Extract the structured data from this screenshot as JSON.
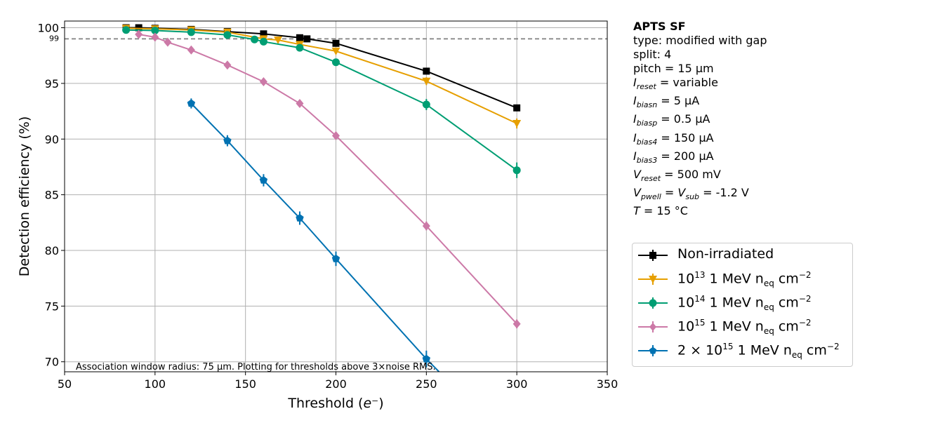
{
  "chart_data": {
    "type": "line",
    "xlabel": "Threshold (e⁻)",
    "ylabel": "Detection efficiency (%)",
    "xlim": [
      50,
      350
    ],
    "ylim": [
      69.1,
      100.6
    ],
    "xticks": [
      50,
      100,
      150,
      200,
      250,
      300,
      350
    ],
    "yticks": [
      70,
      75,
      80,
      85,
      90,
      95,
      100
    ],
    "reference_line": {
      "value": 99,
      "label": "99"
    },
    "annotation": "Association window radius: 75 µm. Plotting for thresholds above 3×noise RMS.",
    "grid": true,
    "series": [
      {
        "name": "Non-irradiated",
        "color": "#000000",
        "marker": "square",
        "x": [
          84,
          91,
          100,
          120,
          140,
          160,
          180,
          184,
          200,
          250,
          300
        ],
        "y": [
          100.0,
          100.0,
          99.95,
          99.85,
          99.65,
          99.45,
          99.1,
          99.0,
          98.6,
          96.1,
          92.8
        ],
        "err": [
          0.1,
          0.1,
          0.1,
          0.1,
          0.1,
          0.15,
          0.15,
          0.15,
          0.2,
          0.25,
          0.3
        ]
      },
      {
        "name": "10^13 1 MeV n_eq cm^-2",
        "color": "#E69F00",
        "marker": "triangle-down",
        "x": [
          84,
          100,
          120,
          140,
          160,
          168,
          180,
          200,
          250,
          300
        ],
        "y": [
          99.95,
          99.9,
          99.8,
          99.6,
          99.0,
          98.9,
          98.5,
          97.9,
          95.2,
          91.4
        ],
        "err": [
          0.1,
          0.1,
          0.1,
          0.15,
          0.2,
          0.2,
          0.2,
          0.25,
          0.35,
          0.45
        ]
      },
      {
        "name": "10^14 1 MeV n_eq cm^-2",
        "color": "#009E73",
        "marker": "circle",
        "x": [
          84,
          100,
          120,
          140,
          155,
          160,
          180,
          200,
          250,
          300
        ],
        "y": [
          99.8,
          99.75,
          99.6,
          99.35,
          98.95,
          98.75,
          98.2,
          96.9,
          93.1,
          87.2
        ],
        "err": [
          0.1,
          0.1,
          0.15,
          0.2,
          0.2,
          0.2,
          0.25,
          0.3,
          0.5,
          0.7
        ]
      },
      {
        "name": "10^15 1 MeV n_eq cm^-2",
        "color": "#CC79A7",
        "marker": "diamond",
        "x": [
          91,
          100,
          107,
          120,
          140,
          160,
          180,
          200,
          250,
          300
        ],
        "y": [
          99.4,
          99.15,
          98.7,
          98.0,
          96.65,
          95.15,
          93.2,
          90.3,
          82.2,
          73.4
        ],
        "err": [
          0.15,
          0.15,
          0.2,
          0.25,
          0.25,
          0.3,
          0.3,
          0.35,
          0.4,
          0.4
        ]
      },
      {
        "name": "2×10^15 1 MeV n_eq cm^-2",
        "color": "#0072B2",
        "marker": "pentagon",
        "x": [
          120,
          140,
          160,
          180,
          200,
          250,
          257
        ],
        "y": [
          93.2,
          89.85,
          86.3,
          82.9,
          79.25,
          70.25,
          69.1
        ],
        "err": [
          0.45,
          0.5,
          0.55,
          0.6,
          0.65,
          0.75,
          0
        ],
        "marker_count": 6
      }
    ]
  },
  "info": {
    "title": "APTS SF",
    "type_line": "type: modified with gap",
    "split_line": "split:  4",
    "pitch_line": "pitch = 15 µm",
    "ireset_val": " = variable",
    "ibiasn_val": " = 5 µA",
    "ibiasp_val": " = 0.5 µA",
    "ibias4_val": " = 150 µA",
    "ibias3_val": " = 200 µA",
    "vreset_val": " = 500 mV",
    "vpwell_val": " = -1.2 V",
    "temp_val": " = 15 °C"
  },
  "legend": {
    "l0": "Non-irradiated",
    "l1_exp": "13",
    "l2_exp": "14",
    "l3_exp": "15",
    "l4_exp": "15",
    "l4_pre": "2 × 10",
    "unit": " 1 MeV n",
    "eq": "eq",
    "cm": " cm",
    "cm_exp": "−2",
    "base": "10"
  }
}
